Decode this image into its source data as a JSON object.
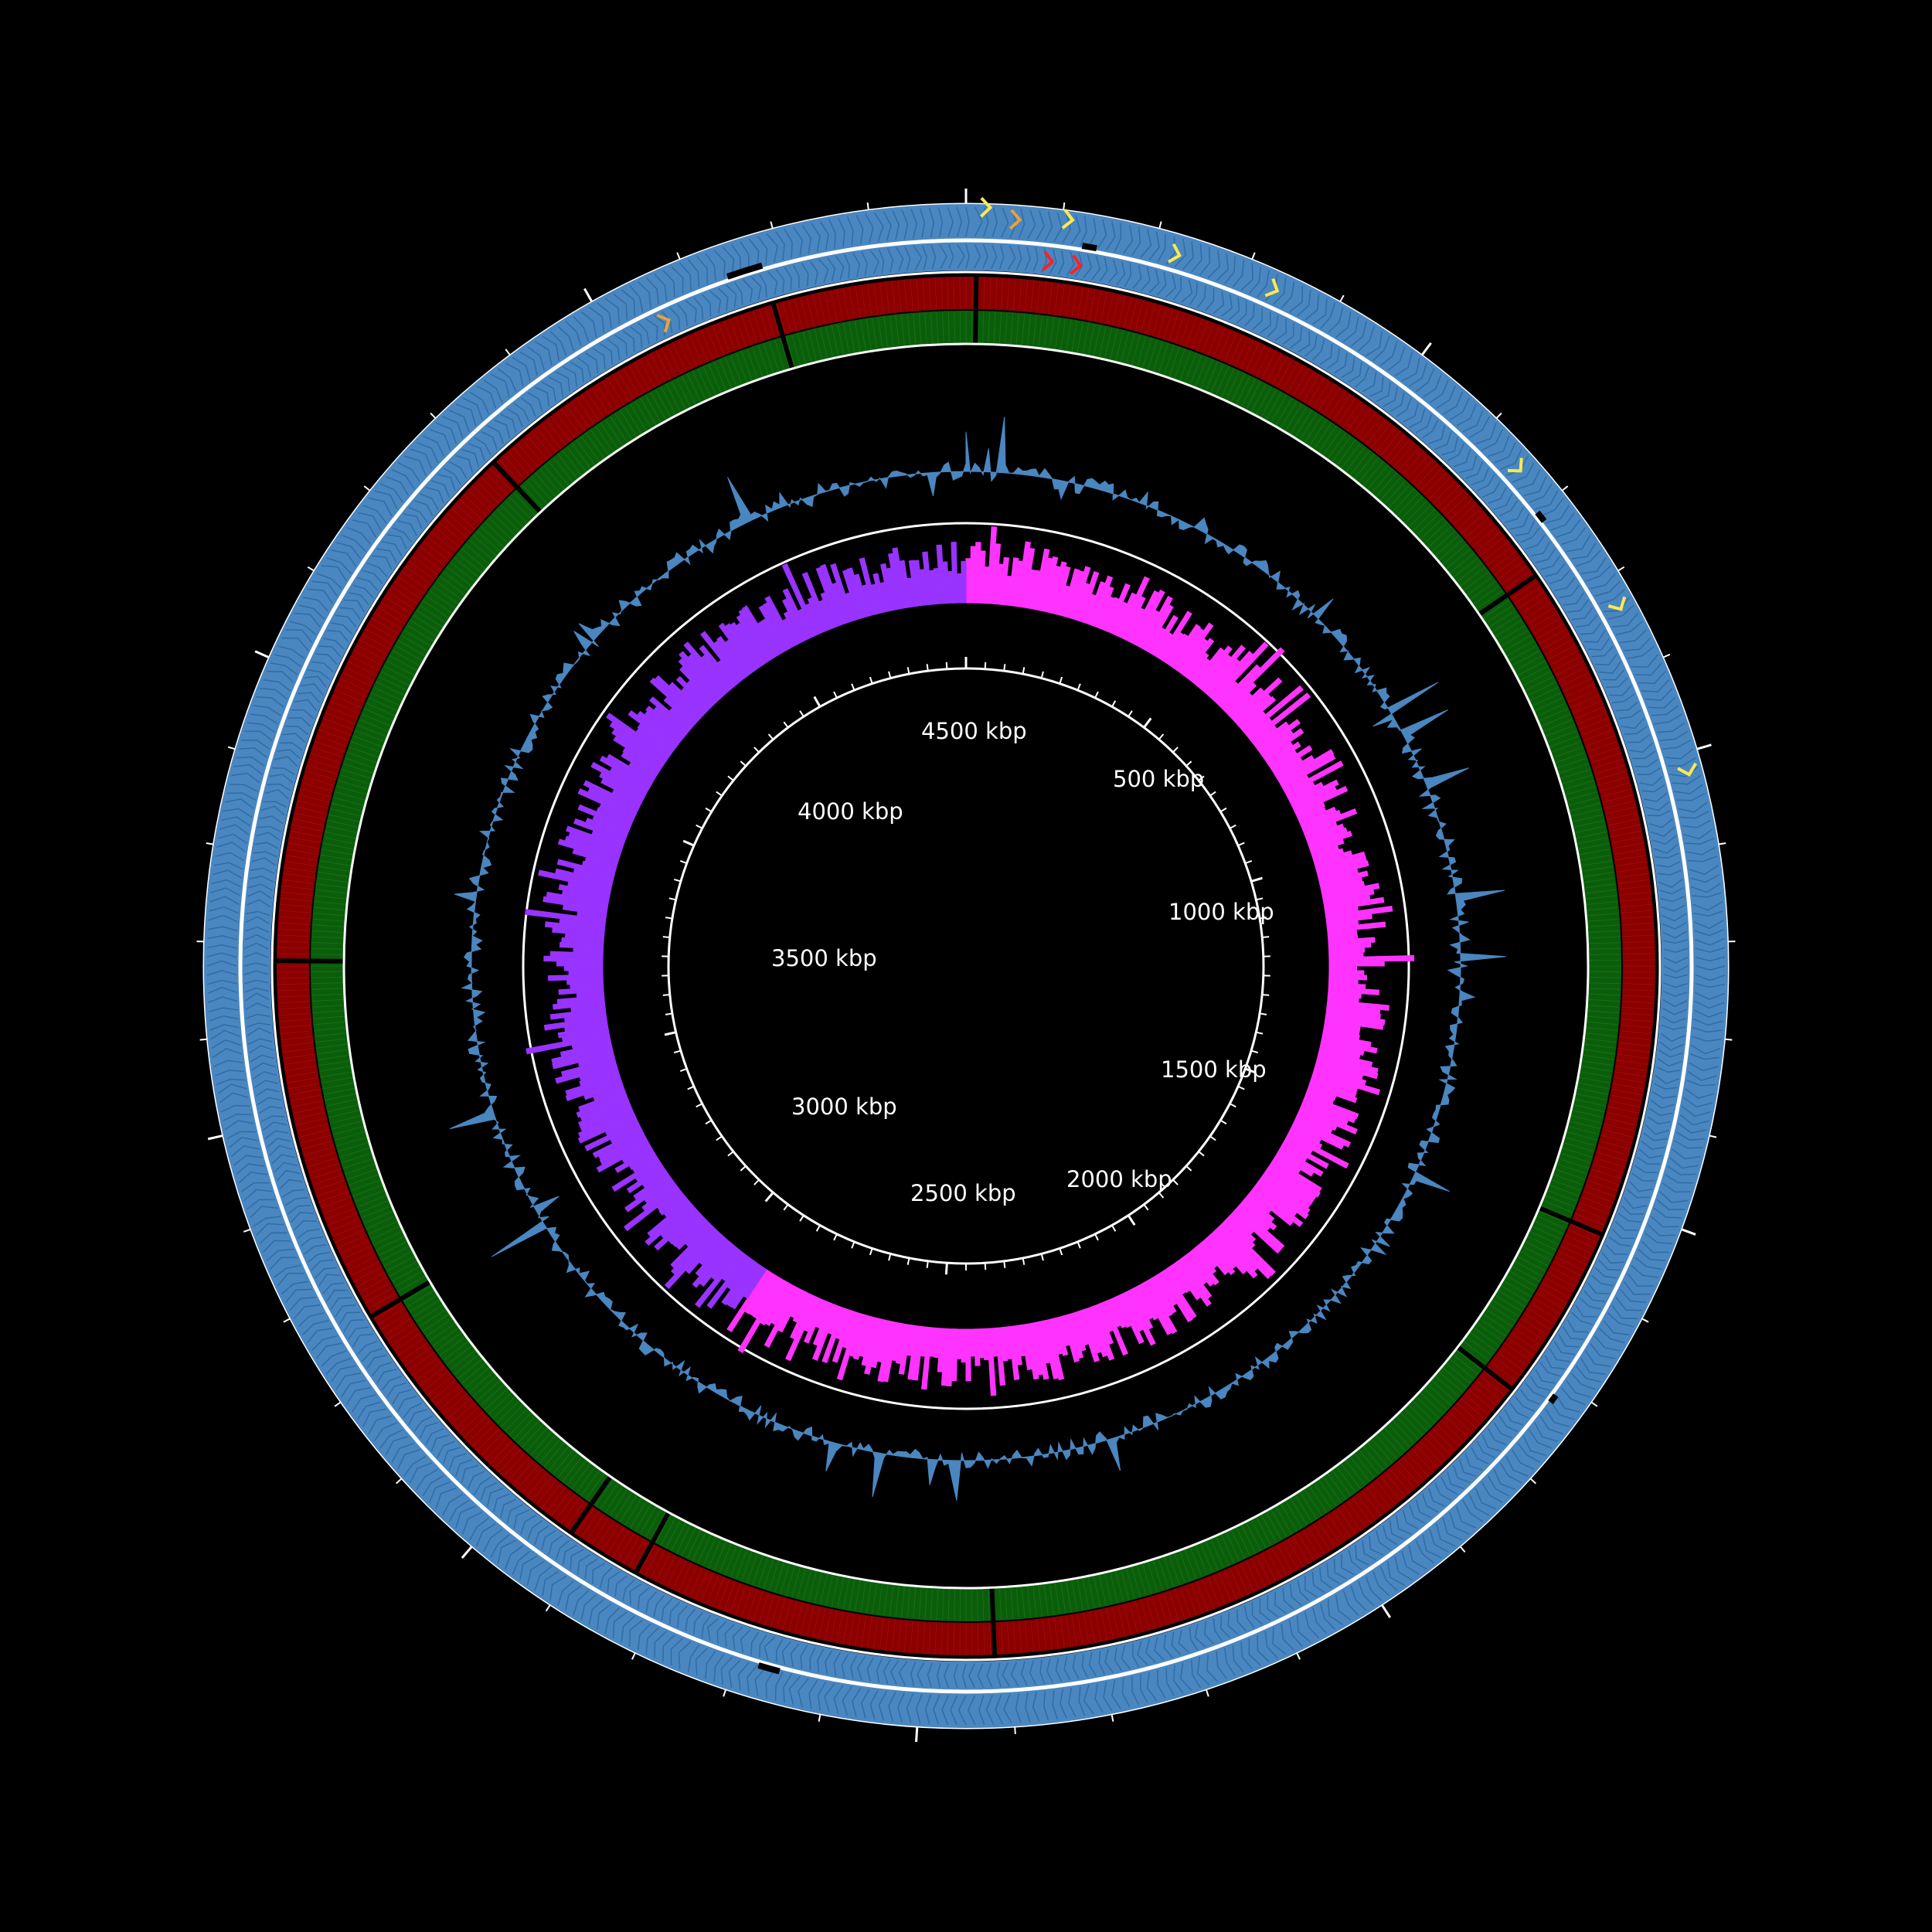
{
  "genome_map": {
    "colors": {
      "background": "#000000",
      "axis": "#ffffff",
      "cds": "#4a86c0",
      "cds_highlight": "#ffe94d",
      "cds_highlight_alt": "#e8a23a",
      "cds_red": "#ff2020",
      "track_red": "#8b0000",
      "track_green": "#0b5d0b",
      "gc_content": "#4a86c0",
      "gc_skew_positive": "#ff33ff",
      "gc_skew_negative": "#9933ff"
    },
    "genome_length_kbp": 4900,
    "scale_labels": [
      {
        "id": "l500",
        "text": "500 kbp",
        "position_kbp": 500
      },
      {
        "id": "l1000",
        "text": "1000 kbp",
        "position_kbp": 1000
      },
      {
        "id": "l1500",
        "text": "1500 kbp",
        "position_kbp": 1500
      },
      {
        "id": "l2000",
        "text": "2000 kbp",
        "position_kbp": 2000
      },
      {
        "id": "l2500",
        "text": "2500 kbp",
        "position_kbp": 2500
      },
      {
        "id": "l3000",
        "text": "3000 kbp",
        "position_kbp": 3000
      },
      {
        "id": "l3500",
        "text": "3500 kbp",
        "position_kbp": 3500
      },
      {
        "id": "l4000",
        "text": "4000 kbp",
        "position_kbp": 4000
      },
      {
        "id": "l4500",
        "text": "4500 kbp",
        "position_kbp": 4500
      }
    ],
    "tracks": [
      "forward-strand-cds",
      "reverse-strand-cds",
      "red-similarity-ring",
      "green-similarity-ring",
      "gc-content",
      "gc-skew",
      "scale-ring"
    ]
  }
}
